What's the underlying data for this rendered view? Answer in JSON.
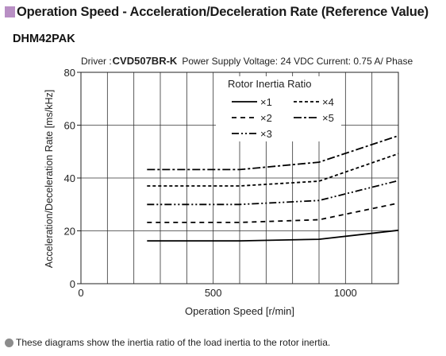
{
  "header": {
    "title": "Operation Speed - Acceleration/Deceleration Rate (Reference Value)",
    "accent_color": "#b88fc4"
  },
  "model": "DHM42PAK",
  "caption": {
    "driver_label": "Driver :",
    "driver_model": "CVD507BR-K",
    "specs": "Power Supply Voltage: 24 VDC Current: 0.75 A/ Phase"
  },
  "footnote": "These diagrams show the inertia ratio of the load inertia to the rotor inertia.",
  "chart_data": {
    "type": "line",
    "xlabel": "Operation Speed [r/min]",
    "ylabel": "Acceleration/Deceleration Rate [ms/kHz]",
    "xlim": [
      0,
      1200
    ],
    "ylim": [
      0,
      80
    ],
    "xticks": [
      0,
      500,
      1000
    ],
    "yticks": [
      0,
      20,
      40,
      60,
      80
    ],
    "grid": true,
    "legend": {
      "title": "Rotor Inertia Ratio",
      "placement": "top-right"
    },
    "series": [
      {
        "name": "×1",
        "style": "solid",
        "x": [
          250,
          600,
          900,
          1200
        ],
        "y": [
          16.2,
          16.2,
          16.8,
          20.2
        ]
      },
      {
        "name": "×2",
        "style": "dashed",
        "x": [
          250,
          600,
          900,
          1200
        ],
        "y": [
          23.2,
          23.2,
          24.2,
          30.5
        ]
      },
      {
        "name": "×3",
        "style": "dash-dot-dot",
        "x": [
          250,
          600,
          900,
          1200
        ],
        "y": [
          30.0,
          30.0,
          31.5,
          39.0
        ]
      },
      {
        "name": "×4",
        "style": "dotted-dash",
        "x": [
          250,
          600,
          900,
          1200
        ],
        "y": [
          37.0,
          37.0,
          38.8,
          49.2
        ]
      },
      {
        "name": "×5",
        "style": "dash-dot",
        "x": [
          250,
          600,
          900,
          1200
        ],
        "y": [
          43.2,
          43.2,
          46.0,
          56.0
        ]
      }
    ]
  }
}
